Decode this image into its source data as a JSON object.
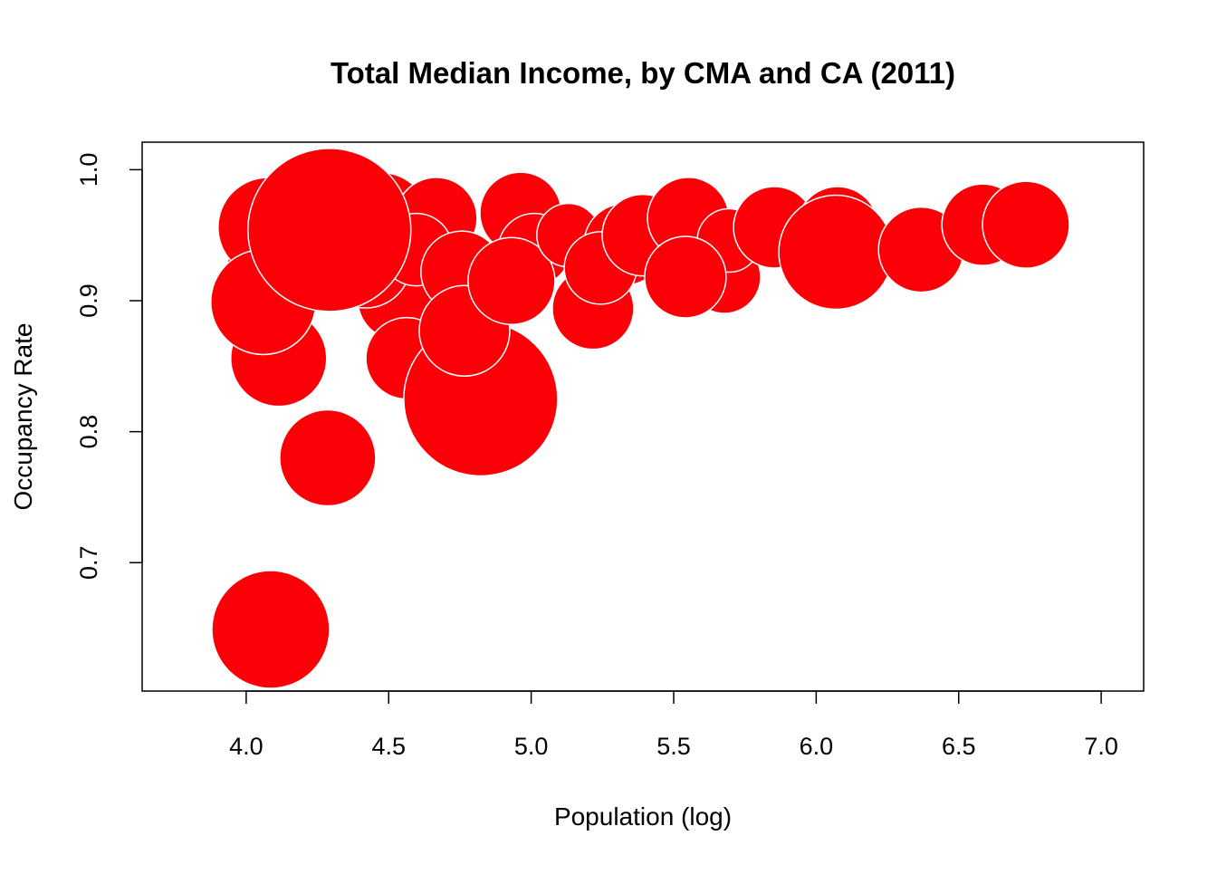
{
  "chart_data": {
    "type": "scatter",
    "variant": "bubble",
    "title": "Total Median Income, by CMA and CA (2011)",
    "xlabel": "Population (log)",
    "ylabel": "Occupancy Rate",
    "xlim": [
      3.635,
      7.149
    ],
    "ylim": [
      0.602,
      1.021
    ],
    "xticks": [
      "4.0",
      "4.5",
      "5.0",
      "5.5",
      "6.0",
      "6.5",
      "7.0"
    ],
    "yticks": [
      "0.7",
      "0.8",
      "0.9",
      "1.0"
    ],
    "grid": false,
    "marker_color": "#fb0007",
    "marker_edge_color": "#ffffff",
    "points": [
      {
        "x": 4.089,
        "y": 0.922,
        "size": 5.0
      },
      {
        "x": 4.184,
        "y": 0.967,
        "size": 4.0
      },
      {
        "x": 4.076,
        "y": 0.956,
        "size": 5.5
      },
      {
        "x": 4.114,
        "y": 0.856,
        "size": 5.3
      },
      {
        "x": 4.06,
        "y": 0.899,
        "size": 5.8
      },
      {
        "x": 4.086,
        "y": 0.649,
        "size": 6.5
      },
      {
        "x": 4.286,
        "y": 0.78,
        "size": 5.3
      },
      {
        "x": 4.388,
        "y": 0.967,
        "size": 5.5
      },
      {
        "x": 4.47,
        "y": 0.96,
        "size": 5.5
      },
      {
        "x": 4.534,
        "y": 0.901,
        "size": 4.5
      },
      {
        "x": 4.563,
        "y": 0.856,
        "size": 4.5
      },
      {
        "x": 4.419,
        "y": 0.929,
        "size": 5.0
      },
      {
        "x": 4.667,
        "y": 0.963,
        "size": 4.5
      },
      {
        "x": 4.597,
        "y": 0.939,
        "size": 4.0
      },
      {
        "x": 4.292,
        "y": 0.954,
        "size": 9.0
      },
      {
        "x": 4.868,
        "y": 0.797,
        "size": 3.0
      },
      {
        "x": 4.823,
        "y": 0.825,
        "size": 8.5
      },
      {
        "x": 4.756,
        "y": 0.922,
        "size": 4.5
      },
      {
        "x": 4.766,
        "y": 0.877,
        "size": 5.0
      },
      {
        "x": 4.963,
        "y": 0.967,
        "size": 4.5
      },
      {
        "x": 5.011,
        "y": 0.939,
        "size": 4.0
      },
      {
        "x": 4.931,
        "y": 0.915,
        "size": 4.8
      },
      {
        "x": 5.131,
        "y": 0.95,
        "size": 3.5
      },
      {
        "x": 5.217,
        "y": 0.894,
        "size": 4.5
      },
      {
        "x": 5.328,
        "y": 0.943,
        "size": 4.5
      },
      {
        "x": 5.243,
        "y": 0.925,
        "size": 4.0
      },
      {
        "x": 5.392,
        "y": 0.95,
        "size": 4.5
      },
      {
        "x": 5.551,
        "y": 0.963,
        "size": 4.5
      },
      {
        "x": 5.678,
        "y": 0.918,
        "size": 4.0
      },
      {
        "x": 5.694,
        "y": 0.946,
        "size": 3.5
      },
      {
        "x": 5.541,
        "y": 0.918,
        "size": 4.5
      },
      {
        "x": 5.859,
        "y": 0.96,
        "size": 4.0
      },
      {
        "x": 5.853,
        "y": 0.956,
        "size": 4.5
      },
      {
        "x": 6.075,
        "y": 0.956,
        "size": 4.5
      },
      {
        "x": 6.069,
        "y": 0.937,
        "size": 6.3
      },
      {
        "x": 6.368,
        "y": 0.939,
        "size": 4.7
      },
      {
        "x": 6.584,
        "y": 0.958,
        "size": 4.5
      },
      {
        "x": 6.736,
        "y": 0.958,
        "size": 4.8
      }
    ]
  }
}
